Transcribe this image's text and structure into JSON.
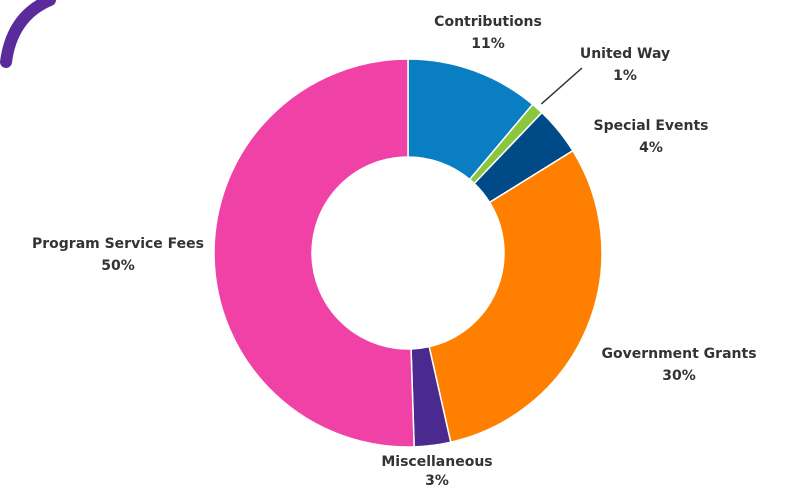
{
  "chart_data": {
    "type": "pie",
    "donut": true,
    "title": "",
    "legend": "none",
    "slices": [
      {
        "name": "Contributions",
        "value": 11,
        "label": "11%",
        "color": "#0a7ec2"
      },
      {
        "name": "United Way",
        "value": 1,
        "label": "1%",
        "color": "#8cc63f"
      },
      {
        "name": "Special Events",
        "value": 4,
        "label": "4%",
        "color": "#004b87"
      },
      {
        "name": "Government Grants",
        "value": 30,
        "label": "30%",
        "color": "#ff7f00"
      },
      {
        "name": "Miscellaneous",
        "value": 3,
        "label": "3%",
        "color": "#4b2a8f"
      },
      {
        "name": "Program Service Fees",
        "value": 50,
        "label": "50%",
        "color": "#ef41a6"
      }
    ]
  },
  "decoration": {
    "corner_arc_color": "#5b2b9b"
  }
}
